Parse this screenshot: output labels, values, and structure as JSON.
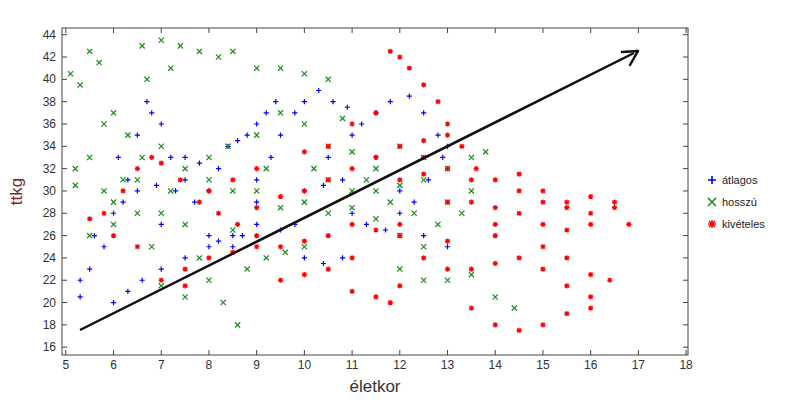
{
  "chart_data": {
    "type": "scatter",
    "x_label": "életkor",
    "y_label": "ttkg",
    "xlim": [
      4.92,
      18.04
    ],
    "ylim": [
      15.3,
      44.6
    ],
    "xticks": [
      5,
      6,
      7,
      8,
      9,
      10,
      11,
      12,
      13,
      14,
      15,
      16,
      17,
      18
    ],
    "yticks": [
      16,
      18,
      20,
      22,
      24,
      26,
      28,
      30,
      32,
      34,
      36,
      38,
      40,
      42,
      44
    ],
    "grid": false,
    "legend": "right",
    "series": [
      {
        "name": "átlagos",
        "color": "#0000ff",
        "marker": "plus",
        "x": [
          5.3,
          5.3,
          5.5,
          5.6,
          5.8,
          6,
          6.2,
          6.3,
          6.5,
          6.7,
          6.8,
          7,
          7.2,
          7.5,
          7.7,
          8,
          8.2,
          8.5,
          8.7,
          9,
          6,
          6.3,
          6.6,
          7,
          7.5,
          8,
          8.5,
          9,
          9.3,
          9.5,
          9.8,
          10,
          10.3,
          10.6,
          10.9,
          11.2,
          11.5,
          11.8,
          12.2,
          12.5,
          12.8,
          13,
          8.4,
          8.6,
          8.8,
          9,
          9.2,
          9.4,
          10,
          10.4,
          10.8,
          11,
          11.3,
          11.7,
          12,
          12.3,
          12.6,
          12.9,
          7.5,
          7.8,
          8.2,
          10,
          10.4,
          10.8,
          9.5,
          9.8,
          6.5,
          6.9,
          7.3,
          8,
          11.5,
          12,
          12.5,
          13,
          6.1,
          7,
          9,
          10.5,
          11
        ],
        "values": [
          20.5,
          22,
          23,
          26,
          25,
          28,
          29,
          31,
          35,
          38,
          37,
          36,
          33,
          31,
          29,
          26,
          25.5,
          25,
          26,
          27,
          20,
          21,
          22,
          23,
          24,
          25,
          26,
          31,
          33,
          35,
          37,
          38,
          39,
          38,
          37.5,
          36,
          37,
          38,
          38.5,
          37,
          35,
          34,
          34,
          34.5,
          35,
          36,
          37,
          38,
          30,
          30.5,
          31,
          28,
          27,
          26.5,
          28,
          29,
          31,
          33,
          33,
          32.5,
          32,
          24,
          23.5,
          24,
          26.5,
          27,
          30,
          30.5,
          30,
          30,
          33,
          30,
          26,
          25,
          33,
          27,
          29,
          33,
          35
        ]
      },
      {
        "name": "hosszú",
        "color": "#1a8c1a",
        "marker": "x",
        "x": [
          5.1,
          5.3,
          5.5,
          5.7,
          6,
          6.3,
          6.6,
          7,
          7.4,
          7.8,
          8.2,
          8.5,
          9,
          9.5,
          10,
          10.5,
          5.2,
          5.5,
          5.8,
          6.2,
          6.6,
          7,
          7.5,
          8,
          8.5,
          9,
          9.5,
          10,
          10.5,
          11,
          11.5,
          12,
          12.5,
          13,
          13.5,
          13.8,
          5.5,
          6,
          6.5,
          7,
          7.5,
          8,
          8.3,
          8.6,
          7,
          7.5,
          8.8,
          9.2,
          9.6,
          10,
          10.5,
          11,
          11.5,
          12,
          12.5,
          13,
          13.5,
          14,
          14.4,
          12,
          12.5,
          9,
          9.5,
          10,
          10.5,
          11,
          11.5,
          12,
          12.5,
          13,
          13.5,
          6,
          6.5,
          7.2,
          8,
          8.4,
          9.2,
          10.2,
          10.8,
          11.3,
          11.8,
          12.3,
          12.8,
          13.3,
          6.8,
          7.8,
          8.5,
          5.2,
          6.7,
          7.2,
          5.8
        ],
        "values": [
          40.5,
          39.5,
          42.5,
          41.5,
          37,
          35,
          43,
          43.5,
          43,
          42.5,
          42,
          42.5,
          41,
          41,
          40.5,
          40,
          32,
          33,
          30,
          31,
          33,
          34,
          32,
          31,
          30,
          30,
          28.5,
          29,
          31,
          30,
          30,
          30.5,
          31,
          32,
          33,
          33.5,
          26,
          27,
          28,
          28,
          27,
          22,
          20,
          18,
          21.5,
          20.5,
          23,
          24,
          24.5,
          25,
          28,
          28.5,
          27.5,
          26,
          25,
          22,
          22.5,
          20.5,
          19.5,
          23,
          22,
          35,
          37,
          36,
          34,
          33.5,
          32,
          34,
          33,
          29,
          30,
          29,
          31,
          30,
          33,
          34,
          32,
          32,
          36.5,
          31,
          29,
          28,
          27,
          28,
          25,
          24,
          26.5,
          30.5,
          40,
          41,
          36
        ]
      },
      {
        "name": "kivételes",
        "color": "#ff0000",
        "marker": "star",
        "x": [
          5.5,
          5.8,
          6.2,
          6.5,
          6.8,
          7,
          7.4,
          7.8,
          8.2,
          8.6,
          9,
          9.5,
          10,
          10.5,
          11,
          11.5,
          12,
          7,
          7.5,
          8,
          8.5,
          9,
          7.5,
          9,
          9.5,
          10,
          10.5,
          11,
          11.5,
          12,
          12.5,
          13,
          11.8,
          12,
          12.2,
          12.5,
          12.8,
          13,
          13.3,
          13.6,
          14,
          14.5,
          15,
          15.5,
          16,
          16.5,
          16.8,
          11,
          11.5,
          11.8,
          12,
          12.5,
          13,
          13.5,
          14,
          14.5,
          15,
          15.5,
          16,
          16.4,
          13.5,
          14,
          14.5,
          15,
          15.5,
          16,
          12,
          12.5,
          13,
          13.5,
          14,
          14.5,
          15,
          15.5,
          16,
          16.5,
          13,
          14,
          15,
          15.5,
          16,
          10,
          10.5,
          9.5,
          6,
          6.5,
          8,
          8.5,
          9,
          10,
          10.5,
          11,
          11.5,
          12.5,
          13,
          14,
          12,
          11,
          13.5,
          14.5,
          15,
          15.5,
          16
        ],
        "values": [
          27.5,
          28,
          30,
          32,
          33,
          32.5,
          31,
          29,
          28,
          27,
          26,
          25,
          25.5,
          26,
          27,
          26.5,
          27,
          22,
          23,
          24,
          24.5,
          25,
          21.5,
          28.5,
          29.5,
          30,
          31,
          32,
          33,
          34,
          34.5,
          35,
          42.5,
          42,
          41,
          39.5,
          38,
          36,
          34,
          32,
          31,
          30,
          29,
          28.5,
          28,
          29,
          27,
          21,
          20.5,
          20,
          21.5,
          24,
          23,
          23,
          23.5,
          24,
          23,
          21.5,
          20.5,
          22,
          19.5,
          18,
          17.5,
          18,
          19,
          19.5,
          31,
          31.5,
          29,
          29,
          28.5,
          28,
          27,
          26.5,
          27,
          28.5,
          25.5,
          26,
          25,
          24,
          22.5,
          22.5,
          23,
          22,
          26,
          25,
          30,
          31,
          32,
          33.5,
          34,
          36,
          37,
          33,
          32,
          27,
          26,
          24,
          31,
          31.5,
          30,
          29,
          29.5
        ]
      }
    ]
  }
}
